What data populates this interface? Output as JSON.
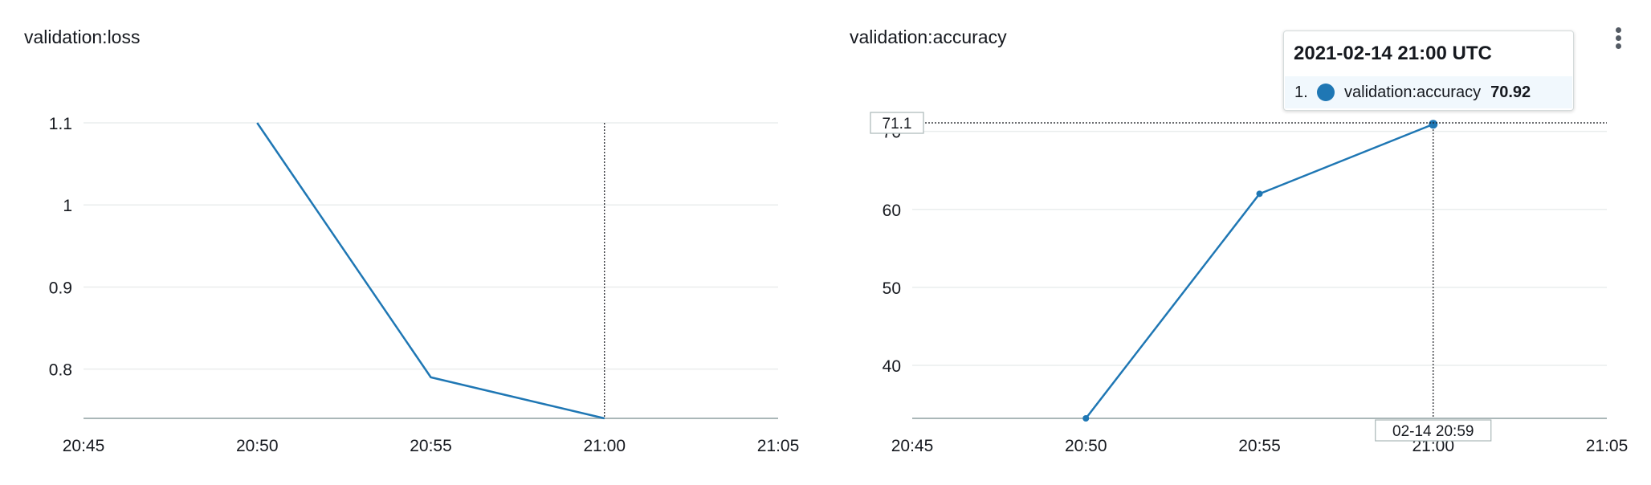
{
  "colors": {
    "series": "#1f77b4",
    "grid": "#eaeded",
    "axis": "#aab7b8",
    "text": "#16191f"
  },
  "chart_data": [
    {
      "type": "line",
      "title": "validation:loss",
      "x_ticks": [
        "20:45",
        "20:50",
        "20:55",
        "21:00",
        "21:05"
      ],
      "xlim": [
        "20:45",
        "21:05"
      ],
      "y_ticks": [
        "1.1",
        "1",
        "0.9",
        "0.8"
      ],
      "ylim": [
        0.74,
        1.1
      ],
      "grid": true,
      "hover_time": "21:00",
      "series": [
        {
          "x": [
            "20:50",
            "20:55",
            "21:00"
          ],
          "values": [
            1.1,
            0.79,
            0.74
          ]
        }
      ]
    },
    {
      "type": "line",
      "title": "validation:accuracy",
      "x_ticks": [
        "20:45",
        "20:50",
        "20:55",
        "21:00",
        "21:05"
      ],
      "xlim": [
        "20:45",
        "21:05"
      ],
      "y_ticks": [
        "70",
        "60",
        "50",
        "40"
      ],
      "ylim": [
        33.2,
        71.1
      ],
      "grid": true,
      "hover_time": "21:00",
      "hover_y_label": "71.1",
      "hover_x_label": "02-14 20:59",
      "series": [
        {
          "name": "validation:accuracy",
          "x": [
            "20:50",
            "20:55",
            "21:00"
          ],
          "values": [
            33.2,
            62,
            70.92
          ]
        }
      ]
    }
  ],
  "tooltip": {
    "title": "2021-02-14 21:00 UTC",
    "index": "1.",
    "series_name": "validation:accuracy",
    "value": "70.92"
  },
  "menu_icon": "more-vertical-icon"
}
